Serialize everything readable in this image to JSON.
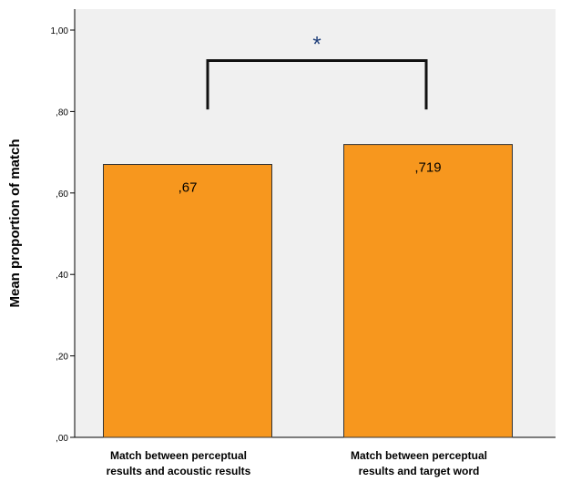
{
  "chart_data": {
    "type": "bar",
    "categories": [
      [
        "Match between perceptual",
        "results and acoustic results"
      ],
      [
        "Match between perceptual",
        "results and target word"
      ]
    ],
    "values": [
      0.67,
      0.719
    ],
    "data_labels": [
      ",67",
      ",719"
    ],
    "ylabel": "Mean proportion of match",
    "xlabel": "",
    "ylim": [
      0,
      1.0
    ],
    "yticks": [
      0,
      0.2,
      0.4,
      0.6,
      0.8,
      1.0
    ],
    "ytick_labels": [
      ",00",
      ",20",
      ",40",
      ",60",
      ",80",
      "1,00"
    ],
    "grid": false,
    "significance": {
      "label": "*",
      "between": [
        0,
        1
      ],
      "level": 0.82
    },
    "colors": {
      "bar_fill": "#f7971e",
      "bar_stroke": "#333333",
      "plot_bg": "#f0f0f0",
      "star": "#1f3f7a",
      "bracket": "#111111"
    }
  }
}
